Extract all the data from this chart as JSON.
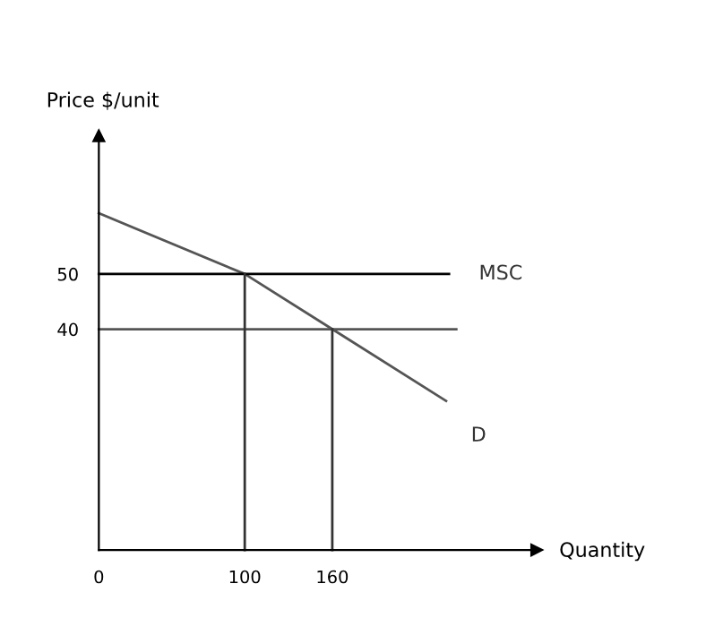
{
  "chart_data": {
    "type": "line",
    "xlabel": "Quantity",
    "ylabel": "Price $/unit",
    "series": [
      {
        "name": "D",
        "color": "#555555",
        "x": [
          0,
          100,
          160,
          238
        ],
        "values": [
          61,
          50,
          40,
          27
        ]
      },
      {
        "name": "MSC",
        "color": "#000000",
        "x": [
          0,
          240
        ],
        "values": [
          50,
          50
        ]
      },
      {
        "color": "#555555",
        "x": [
          0,
          245
        ],
        "values": [
          40,
          40
        ]
      },
      {
        "color": "#333333",
        "x": [
          100,
          100
        ],
        "values": [
          0,
          50
        ]
      },
      {
        "color": "#333333",
        "x": [
          160,
          160
        ],
        "values": [
          0,
          40
        ]
      }
    ],
    "xlim": [
      0,
      300
    ],
    "ylim": [
      0,
      75
    ],
    "xticks": [
      0,
      100,
      160
    ],
    "yticks": [
      40,
      50
    ],
    "grid": false,
    "legend": false,
    "marker": "none",
    "line_style": "solid"
  }
}
